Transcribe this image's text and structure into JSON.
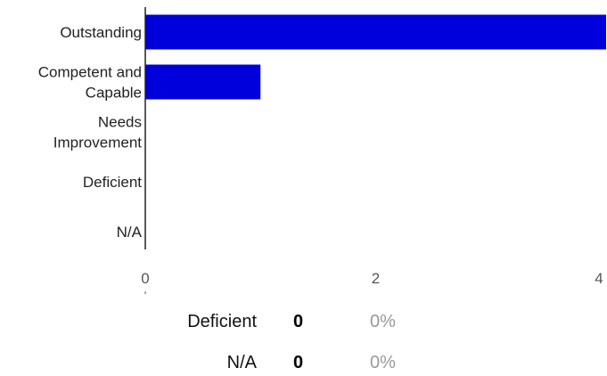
{
  "chart_data": {
    "type": "bar",
    "orientation": "horizontal",
    "categories": [
      [
        "Outstanding"
      ],
      [
        "Competent and",
        "Capable"
      ],
      [
        "Needs",
        "Improvement"
      ],
      [
        "Deficient"
      ],
      [
        "N/A"
      ]
    ],
    "values": [
      4,
      1,
      0,
      0,
      0
    ],
    "xlim": [
      0,
      4
    ],
    "xticks": [
      "0",
      "2",
      "4"
    ],
    "grid": false,
    "bar_color": "#0000dd"
  },
  "summary": [
    {
      "label": "Deficient",
      "count": "0",
      "percent": "0%"
    },
    {
      "label": "N/A",
      "count": "0",
      "percent": "0%"
    }
  ]
}
